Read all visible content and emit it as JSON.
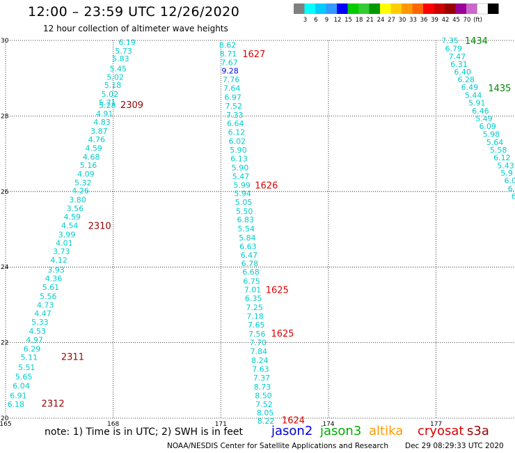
{
  "header": {
    "title": "12:00 – 23:59 UTC 12/26/2020",
    "subtitle": "12 hour collection of altimeter wave heights"
  },
  "legend": {
    "swatch_colors": [
      "#808080",
      "#00ffff",
      "#00ccff",
      "#3399ff",
      "#0000ff",
      "#00cc00",
      "#33cc33",
      "#009900",
      "#ffff00",
      "#ffcc00",
      "#ff9900",
      "#ff6600",
      "#ff0000",
      "#cc0000",
      "#990000",
      "#990099",
      "#cc66cc",
      "#ffffff",
      "#000000"
    ],
    "labels": [
      "3",
      "6",
      "9",
      "12",
      "15",
      "18",
      "21",
      "24",
      "27",
      "30",
      "33",
      "36",
      "39",
      "42",
      "45",
      "70",
      "(ft)"
    ]
  },
  "footer": {
    "note": "note: 1) Time is in UTC; 2) SWH is in feet",
    "satellites": [
      {
        "name": "jason2",
        "color": "#0000dd"
      },
      {
        "name": "jason3",
        "color": "#00aa00"
      },
      {
        "name": "altika",
        "color": "#ff9900"
      },
      {
        "name": "cryosat",
        "color": "#dd0000"
      },
      {
        "name": "s3a",
        "color": "#990000"
      }
    ],
    "credit": "NOAA/NESDIS Center for Satellite Applications and Research",
    "timestamp": "Dec 29 08:29:33 UTC 2020"
  },
  "chart_data": {
    "type": "scatter",
    "title": "12:00 – 23:59 UTC 12/26/2020",
    "subtitle": "12 hour collection of altimeter wave heights",
    "xlabel": "",
    "ylabel": "",
    "xlim": [
      165,
      179.2
    ],
    "ylim": [
      20,
      30
    ],
    "x_ticks": [
      165,
      168,
      171,
      174,
      177
    ],
    "y_ticks": [
      20,
      22,
      24,
      26,
      28,
      30
    ],
    "grid": true,
    "colors": {
      "cyan": "#00cccc",
      "blue": "#0000ee",
      "red": "#dd0000",
      "darkred": "#990000",
      "green": "#008800"
    },
    "tracks": [
      {
        "color": "cyan",
        "points": [
          {
            "x": 168.15,
            "y": 29.95,
            "v": "6.19"
          },
          {
            "x": 168.05,
            "y": 29.72,
            "v": "5.73"
          },
          {
            "x": 167.97,
            "y": 29.52,
            "v": "5.83"
          },
          {
            "x": 167.9,
            "y": 29.25,
            "v": "5.45"
          },
          {
            "x": 167.82,
            "y": 29.03,
            "v": "5.02"
          },
          {
            "x": 167.75,
            "y": 28.82,
            "v": "5.18"
          },
          {
            "x": 167.67,
            "y": 28.58,
            "v": "5.02"
          },
          {
            "x": 167.6,
            "y": 28.36,
            "v": "5.71"
          },
          {
            "x": 167.6,
            "y": 28.28,
            "v": "5.28"
          },
          {
            "x": 167.52,
            "y": 28.06,
            "v": "4.91"
          },
          {
            "x": 167.45,
            "y": 27.84,
            "v": "4.83"
          },
          {
            "x": 167.37,
            "y": 27.6,
            "v": "3.87"
          },
          {
            "x": 167.3,
            "y": 27.38,
            "v": "4.76"
          },
          {
            "x": 167.22,
            "y": 27.15,
            "v": "4.59"
          },
          {
            "x": 167.15,
            "y": 26.92,
            "v": "4.68"
          },
          {
            "x": 167.07,
            "y": 26.7,
            "v": "5.16"
          },
          {
            "x": 167.0,
            "y": 26.47,
            "v": "4.09"
          },
          {
            "x": 166.92,
            "y": 26.24,
            "v": "5.32"
          },
          {
            "x": 166.85,
            "y": 26.02,
            "v": "4.26"
          },
          {
            "x": 166.77,
            "y": 25.78,
            "v": "3.80"
          },
          {
            "x": 166.7,
            "y": 25.55,
            "v": "3.56"
          },
          {
            "x": 166.62,
            "y": 25.33,
            "v": "4.59"
          },
          {
            "x": 166.55,
            "y": 25.1,
            "v": "4.54"
          },
          {
            "x": 166.47,
            "y": 24.86,
            "v": "3.99"
          },
          {
            "x": 166.4,
            "y": 24.64,
            "v": "4.01"
          },
          {
            "x": 166.32,
            "y": 24.42,
            "v": "3.73"
          },
          {
            "x": 166.25,
            "y": 24.19,
            "v": "4.12"
          },
          {
            "x": 166.17,
            "y": 23.93,
            "v": "3.93"
          },
          {
            "x": 166.1,
            "y": 23.7,
            "v": "4.36"
          },
          {
            "x": 166.02,
            "y": 23.47,
            "v": "5.61"
          },
          {
            "x": 165.95,
            "y": 23.23,
            "v": "5.56"
          },
          {
            "x": 165.87,
            "y": 23.0,
            "v": "4.73"
          },
          {
            "x": 165.8,
            "y": 22.78,
            "v": "4.47"
          },
          {
            "x": 165.72,
            "y": 22.55,
            "v": "5.33"
          },
          {
            "x": 165.65,
            "y": 22.31,
            "v": "4.53"
          },
          {
            "x": 165.57,
            "y": 22.08,
            "v": "4.97"
          },
          {
            "x": 165.5,
            "y": 21.84,
            "v": "6.29"
          },
          {
            "x": 165.42,
            "y": 21.61,
            "v": "5.11"
          },
          {
            "x": 165.35,
            "y": 21.35,
            "v": "5.51"
          },
          {
            "x": 165.27,
            "y": 21.1,
            "v": "5.65"
          },
          {
            "x": 165.2,
            "y": 20.86,
            "v": "6.04"
          },
          {
            "x": 165.12,
            "y": 20.6,
            "v": "6.91"
          },
          {
            "x": 165.05,
            "y": 20.37,
            "v": "6.18"
          }
        ]
      },
      {
        "color": "cyan",
        "points": [
          {
            "x": 170.95,
            "y": 29.88,
            "v": "8.62"
          },
          {
            "x": 170.97,
            "y": 29.65,
            "v": "8.71"
          },
          {
            "x": 171.0,
            "y": 29.42,
            "v": "7.67"
          },
          {
            "x": 171.02,
            "y": 29.2,
            "v": "9.28",
            "color": "blue"
          },
          {
            "x": 171.05,
            "y": 28.97,
            "v": "7.76"
          },
          {
            "x": 171.07,
            "y": 28.74,
            "v": "7.64"
          },
          {
            "x": 171.1,
            "y": 28.5,
            "v": "6.97"
          },
          {
            "x": 171.12,
            "y": 28.27,
            "v": "7.52"
          },
          {
            "x": 171.15,
            "y": 28.03,
            "v": "7.33"
          },
          {
            "x": 171.17,
            "y": 27.8,
            "v": "6.64"
          },
          {
            "x": 171.2,
            "y": 27.57,
            "v": "6.12"
          },
          {
            "x": 171.22,
            "y": 27.33,
            "v": "6.02"
          },
          {
            "x": 171.25,
            "y": 27.1,
            "v": "5.90"
          },
          {
            "x": 171.27,
            "y": 26.87,
            "v": "6.13"
          },
          {
            "x": 171.3,
            "y": 26.63,
            "v": "5.90"
          },
          {
            "x": 171.32,
            "y": 26.4,
            "v": "5.47"
          },
          {
            "x": 171.35,
            "y": 26.17,
            "v": "5.99"
          },
          {
            "x": 171.37,
            "y": 25.95,
            "v": "5.94"
          },
          {
            "x": 171.4,
            "y": 25.72,
            "v": "5.05"
          },
          {
            "x": 171.42,
            "y": 25.48,
            "v": "5.50"
          },
          {
            "x": 171.45,
            "y": 25.26,
            "v": "6.83"
          },
          {
            "x": 171.47,
            "y": 25.02,
            "v": "5.54"
          },
          {
            "x": 171.5,
            "y": 24.78,
            "v": "5.84"
          },
          {
            "x": 171.52,
            "y": 24.55,
            "v": "6.63"
          },
          {
            "x": 171.55,
            "y": 24.32,
            "v": "6.47"
          },
          {
            "x": 171.57,
            "y": 24.1,
            "v": "6.78"
          },
          {
            "x": 171.6,
            "y": 23.87,
            "v": "6.68"
          },
          {
            "x": 171.62,
            "y": 23.63,
            "v": "6.75"
          },
          {
            "x": 171.65,
            "y": 23.4,
            "v": "7.01"
          },
          {
            "x": 171.67,
            "y": 23.17,
            "v": "6.35"
          },
          {
            "x": 171.7,
            "y": 22.93,
            "v": "7.25"
          },
          {
            "x": 171.72,
            "y": 22.7,
            "v": "7.18"
          },
          {
            "x": 171.75,
            "y": 22.47,
            "v": "7.65"
          },
          {
            "x": 171.77,
            "y": 22.23,
            "v": "7.56"
          },
          {
            "x": 171.8,
            "y": 22.0,
            "v": "7.70"
          },
          {
            "x": 171.82,
            "y": 21.77,
            "v": "7.84"
          },
          {
            "x": 171.85,
            "y": 21.53,
            "v": "8.24"
          },
          {
            "x": 171.87,
            "y": 21.3,
            "v": "7.63"
          },
          {
            "x": 171.9,
            "y": 21.07,
            "v": "7.37"
          },
          {
            "x": 171.92,
            "y": 20.83,
            "v": "8.73"
          },
          {
            "x": 171.95,
            "y": 20.6,
            "v": "8.50"
          },
          {
            "x": 171.97,
            "y": 20.37,
            "v": "7.52"
          },
          {
            "x": 172.0,
            "y": 20.15,
            "v": "8.05"
          },
          {
            "x": 172.02,
            "y": 19.93,
            "v": "8.22"
          }
        ]
      },
      {
        "color": "cyan",
        "points": [
          {
            "x": 177.15,
            "y": 30.0,
            "v": "7.35"
          },
          {
            "x": 177.25,
            "y": 29.79,
            "v": "6.79"
          },
          {
            "x": 177.35,
            "y": 29.58,
            "v": "7.47"
          },
          {
            "x": 177.4,
            "y": 29.37,
            "v": "6.31"
          },
          {
            "x": 177.5,
            "y": 29.17,
            "v": "6.40"
          },
          {
            "x": 177.6,
            "y": 28.97,
            "v": "6.28"
          },
          {
            "x": 177.7,
            "y": 28.76,
            "v": "6.49"
          },
          {
            "x": 177.8,
            "y": 28.55,
            "v": "5.44"
          },
          {
            "x": 177.9,
            "y": 28.35,
            "v": "5.91"
          },
          {
            "x": 178.0,
            "y": 28.14,
            "v": "6.46"
          },
          {
            "x": 178.1,
            "y": 27.93,
            "v": "5.49"
          },
          {
            "x": 178.2,
            "y": 27.73,
            "v": "6.09"
          },
          {
            "x": 178.3,
            "y": 27.52,
            "v": "5.98"
          },
          {
            "x": 178.4,
            "y": 27.31,
            "v": "5.64"
          },
          {
            "x": 178.5,
            "y": 27.1,
            "v": "5.58"
          },
          {
            "x": 178.6,
            "y": 26.9,
            "v": "6.12"
          },
          {
            "x": 178.7,
            "y": 26.69,
            "v": "5.43"
          },
          {
            "x": 178.8,
            "y": 26.49,
            "v": "5.9"
          },
          {
            "x": 178.9,
            "y": 26.29,
            "v": "6.0"
          },
          {
            "x": 179.0,
            "y": 26.08,
            "v": "6."
          },
          {
            "x": 179.1,
            "y": 25.88,
            "v": "6"
          }
        ]
      }
    ],
    "time_labels": [
      {
        "x": 168.2,
        "y": 28.3,
        "text": "2309",
        "color": "darkred"
      },
      {
        "x": 167.3,
        "y": 25.1,
        "text": "2310",
        "color": "darkred"
      },
      {
        "x": 166.55,
        "y": 21.63,
        "text": "2311",
        "color": "darkred"
      },
      {
        "x": 166.0,
        "y": 20.4,
        "text": "2312",
        "color": "darkred"
      },
      {
        "x": 171.6,
        "y": 29.65,
        "text": "1627",
        "color": "red"
      },
      {
        "x": 171.95,
        "y": 26.17,
        "text": "1626",
        "color": "red"
      },
      {
        "x": 172.25,
        "y": 23.4,
        "text": "1625",
        "color": "red"
      },
      {
        "x": 172.4,
        "y": 22.25,
        "text": "1625",
        "color": "red"
      },
      {
        "x": 172.7,
        "y": 19.95,
        "text": "1624",
        "color": "red"
      },
      {
        "x": 177.8,
        "y": 30.0,
        "text": "1434",
        "color": "green"
      },
      {
        "x": 178.45,
        "y": 28.75,
        "text": "1435",
        "color": "green"
      }
    ]
  }
}
